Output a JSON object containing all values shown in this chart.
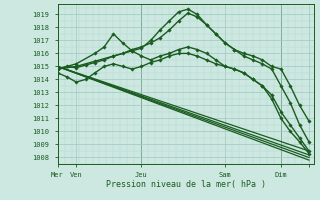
{
  "bg_color": "#cce8e0",
  "grid_color_minor": "#b8d8d0",
  "grid_color_major": "#a0c8c0",
  "line_color": "#1a5c20",
  "text_color": "#1a5c20",
  "xlabel_text": "Pression niveau de la mer( hPa )",
  "ylim": [
    1007.5,
    1019.8
  ],
  "xlim": [
    0,
    110
  ],
  "yticks": [
    1008,
    1009,
    1010,
    1011,
    1012,
    1013,
    1014,
    1015,
    1016,
    1017,
    1018,
    1019
  ],
  "xtick_positions": [
    0,
    8,
    36,
    72,
    96,
    108
  ],
  "xtick_labels": [
    "Mer",
    "Ven",
    "Jeu",
    "Sam",
    "Dim",
    ""
  ],
  "vlines_x": [
    0,
    36,
    96
  ],
  "lines": [
    {
      "x": [
        0,
        4,
        8,
        12,
        16,
        20,
        24,
        28,
        32,
        36,
        40,
        44,
        48,
        52,
        56,
        60,
        64,
        68,
        72,
        76,
        80,
        84,
        88,
        92,
        96,
        100,
        104,
        108
      ],
      "y": [
        1014.8,
        1015.0,
        1014.9,
        1015.1,
        1015.3,
        1015.5,
        1015.8,
        1016.0,
        1016.3,
        1016.5,
        1016.8,
        1017.2,
        1017.8,
        1018.5,
        1019.1,
        1018.8,
        1018.2,
        1017.5,
        1016.8,
        1016.3,
        1016.0,
        1015.8,
        1015.5,
        1015.0,
        1014.8,
        1013.5,
        1012.0,
        1010.8
      ],
      "marker": "D",
      "ms": 1.8,
      "lw": 1.0
    },
    {
      "x": [
        0,
        8,
        16,
        24,
        32,
        36,
        40,
        44,
        48,
        52,
        56,
        60,
        64,
        68,
        72,
        76,
        80,
        84,
        88,
        92,
        96,
        100,
        104,
        108
      ],
      "y": [
        1014.8,
        1015.0,
        1015.4,
        1015.8,
        1016.2,
        1016.4,
        1017.0,
        1017.8,
        1018.5,
        1019.2,
        1019.4,
        1019.0,
        1018.2,
        1017.5,
        1016.8,
        1016.3,
        1015.8,
        1015.5,
        1015.2,
        1014.8,
        1013.5,
        1012.2,
        1010.5,
        1009.2
      ],
      "marker": "D",
      "ms": 1.8,
      "lw": 1.0
    },
    {
      "x": [
        0,
        8,
        16,
        20,
        24,
        28,
        32,
        36,
        40,
        44,
        48,
        52,
        56,
        60,
        64,
        68,
        72,
        76,
        80,
        84,
        88,
        92,
        96,
        100,
        104,
        108
      ],
      "y": [
        1014.8,
        1015.2,
        1016.0,
        1016.5,
        1017.5,
        1016.8,
        1016.2,
        1015.8,
        1015.5,
        1015.8,
        1016.0,
        1016.3,
        1016.5,
        1016.3,
        1016.0,
        1015.5,
        1015.0,
        1014.8,
        1014.5,
        1014.0,
        1013.5,
        1012.5,
        1011.0,
        1010.0,
        1009.2,
        1008.3
      ],
      "marker": "D",
      "ms": 1.8,
      "lw": 1.0
    },
    {
      "x": [
        0,
        4,
        8,
        12,
        16,
        20,
        24,
        28,
        32,
        36,
        40,
        44,
        48,
        52,
        56,
        60,
        64,
        68,
        72,
        76,
        80,
        84,
        88,
        92,
        96,
        100,
        104,
        108
      ],
      "y": [
        1014.5,
        1014.2,
        1013.8,
        1014.0,
        1014.5,
        1015.0,
        1015.2,
        1015.0,
        1014.8,
        1015.0,
        1015.3,
        1015.5,
        1015.8,
        1016.0,
        1016.0,
        1015.8,
        1015.5,
        1015.2,
        1015.0,
        1014.8,
        1014.5,
        1014.0,
        1013.5,
        1012.8,
        1011.5,
        1010.5,
        1009.5,
        1008.5
      ],
      "marker": "D",
      "ms": 1.8,
      "lw": 1.0
    },
    {
      "x": [
        0,
        108
      ],
      "y": [
        1015.0,
        1008.2
      ],
      "marker": null,
      "ms": 0,
      "lw": 0.9
    },
    {
      "x": [
        0,
        108
      ],
      "y": [
        1015.0,
        1008.5
      ],
      "marker": null,
      "ms": 0,
      "lw": 0.9
    },
    {
      "x": [
        0,
        108
      ],
      "y": [
        1015.0,
        1008.0
      ],
      "marker": null,
      "ms": 0,
      "lw": 0.9
    },
    {
      "x": [
        0,
        108
      ],
      "y": [
        1015.0,
        1007.8
      ],
      "marker": null,
      "ms": 0,
      "lw": 0.9
    }
  ],
  "figsize": [
    3.2,
    2.0
  ],
  "dpi": 100
}
